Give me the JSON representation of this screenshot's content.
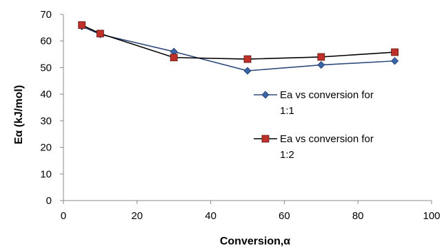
{
  "chart_data": {
    "type": "line",
    "title": "",
    "xlabel": "Conversion,α",
    "ylabel": "Eα (kJ/mol)",
    "xlim": [
      0,
      100
    ],
    "ylim": [
      0,
      70
    ],
    "xticks": [
      "0",
      "20",
      "40",
      "60",
      "80",
      "100"
    ],
    "yticks": [
      "0",
      "10",
      "20",
      "30",
      "40",
      "50",
      "60",
      "70"
    ],
    "grid": false,
    "legend_position": "right",
    "series": [
      {
        "name_lines": [
          "Ea vs conversion for",
          "1:1"
        ],
        "color": "#2e4a7a",
        "marker": "diamond",
        "marker_color": "#3a65a8",
        "x": [
          5,
          10,
          30,
          50,
          70,
          90
        ],
        "values": [
          65.5,
          62.5,
          56,
          48.8,
          51,
          52.5
        ]
      },
      {
        "name_lines": [
          "Ea vs conversion for",
          "1:2"
        ],
        "color": "#000000",
        "marker": "square",
        "marker_color": "#c0302a",
        "x": [
          5,
          10,
          30,
          50,
          70,
          90
        ],
        "values": [
          66,
          62.8,
          53.8,
          53.2,
          54,
          55.8
        ]
      }
    ]
  }
}
